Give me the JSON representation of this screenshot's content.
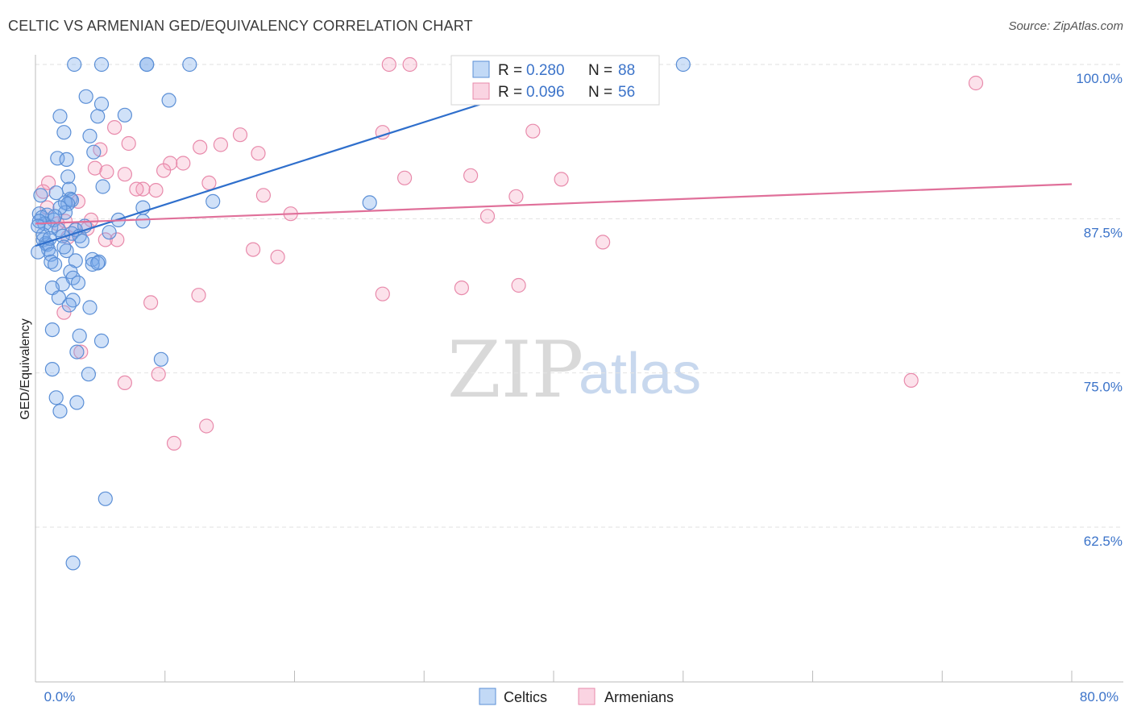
{
  "title": "CELTIC VS ARMENIAN GED/EQUIVALENCY CORRELATION CHART",
  "source": "Source: ZipAtlas.com",
  "watermark": {
    "zip": "ZIP",
    "atlas": "atlas"
  },
  "colors": {
    "celtic_fill": "rgba(120,170,235,0.35)",
    "celtic_stroke": "#5b8fd6",
    "celtic_line": "#2f6fcc",
    "armenian_fill": "rgba(245,160,190,0.30)",
    "armenian_stroke": "#e88aab",
    "armenian_line": "#e0709a",
    "axis_text": "#3b73c9",
    "grid": "#e2e2e2"
  },
  "legend": {
    "row1": {
      "r_label": "R = ",
      "r_value": "0.280",
      "n_label": "N = ",
      "n_value": "88"
    },
    "row2": {
      "r_label": "R = ",
      "r_value": "0.096",
      "n_label": "N = ",
      "n_value": "56"
    }
  },
  "chart_data": {
    "type": "scatter",
    "title": "CELTIC VS ARMENIAN GED/EQUIVALENCY CORRELATION CHART",
    "xlabel": "",
    "ylabel": "GED/Equivalency",
    "xlim": [
      0,
      80
    ],
    "ylim": [
      51.2,
      101.3
    ],
    "x_tick_labels": [
      "0.0%",
      "80.0%"
    ],
    "y_ticks": [
      62.5,
      75.0,
      87.5,
      100.0
    ],
    "y_tick_labels": [
      "62.5%",
      "75.0%",
      "87.5%",
      "100.0%"
    ],
    "legend_position": "bottom",
    "series": [
      {
        "name": "Celtics",
        "r": 0.28,
        "n": 88,
        "trend": {
          "x": [
            0.0,
            44.0
          ],
          "y": [
            85.3,
            100.0
          ]
        },
        "points": [
          [
            3,
            100
          ],
          [
            5.1,
            100
          ],
          [
            8.6,
            100
          ],
          [
            8.6,
            100
          ],
          [
            11.9,
            100
          ],
          [
            50,
            100
          ],
          [
            3.9,
            97.4
          ],
          [
            5.1,
            96.8
          ],
          [
            10.3,
            97.1
          ],
          [
            1.9,
            95.8
          ],
          [
            4.8,
            95.8
          ],
          [
            6.9,
            95.9
          ],
          [
            2.2,
            94.5
          ],
          [
            4.2,
            94.2
          ],
          [
            4.5,
            92.9
          ],
          [
            1.7,
            92.4
          ],
          [
            2.4,
            92.3
          ],
          [
            2.5,
            90.9
          ],
          [
            5.2,
            90.1
          ],
          [
            2.6,
            89.9
          ],
          [
            1.6,
            89.6
          ],
          [
            0.4,
            89.4
          ],
          [
            2.7,
            89.1
          ],
          [
            2.8,
            89.0
          ],
          [
            13.7,
            88.9
          ],
          [
            2.3,
            88.8
          ],
          [
            2.5,
            88.7
          ],
          [
            25.8,
            88.8
          ],
          [
            8.3,
            88.4
          ],
          [
            2.3,
            88.0
          ],
          [
            0.3,
            87.9
          ],
          [
            0.9,
            87.8
          ],
          [
            0.5,
            87.6
          ],
          [
            1.4,
            87.4
          ],
          [
            6.4,
            87.4
          ],
          [
            8.3,
            87.3
          ],
          [
            0.7,
            87.1
          ],
          [
            1.2,
            86.8
          ],
          [
            1.8,
            86.6
          ],
          [
            3.1,
            86.6
          ],
          [
            2.8,
            86.3
          ],
          [
            3.4,
            86.1
          ],
          [
            2.1,
            86.1
          ],
          [
            5.7,
            86.4
          ],
          [
            0.6,
            85.8
          ],
          [
            0.8,
            85.5
          ],
          [
            0.9,
            85.4
          ],
          [
            3.6,
            85.7
          ],
          [
            1.0,
            85.0
          ],
          [
            2.4,
            84.9
          ],
          [
            0.2,
            84.8
          ],
          [
            1.2,
            84.6
          ],
          [
            3.1,
            84.1
          ],
          [
            4.4,
            84.2
          ],
          [
            4.9,
            84.0
          ],
          [
            1.2,
            84.0
          ],
          [
            1.5,
            83.8
          ],
          [
            4.4,
            83.8
          ],
          [
            2.7,
            83.2
          ],
          [
            2.9,
            82.7
          ],
          [
            3.3,
            82.3
          ],
          [
            2.1,
            82.2
          ],
          [
            1.3,
            81.9
          ],
          [
            1.8,
            81.1
          ],
          [
            2.9,
            80.9
          ],
          [
            4.2,
            80.3
          ],
          [
            2.6,
            80.5
          ],
          [
            1.3,
            78.5
          ],
          [
            3.4,
            78.0
          ],
          [
            5.1,
            77.6
          ],
          [
            3.2,
            76.7
          ],
          [
            9.7,
            76.1
          ],
          [
            1.3,
            75.3
          ],
          [
            4.1,
            74.9
          ],
          [
            1.6,
            73.0
          ],
          [
            3.2,
            72.6
          ],
          [
            1.9,
            71.9
          ],
          [
            5.4,
            64.8
          ],
          [
            2.9,
            59.6
          ],
          [
            0.3,
            87.3
          ],
          [
            0.6,
            86.2
          ],
          [
            1.1,
            85.9
          ],
          [
            1.9,
            88.4
          ],
          [
            4.8,
            83.9
          ],
          [
            0.2,
            86.9
          ],
          [
            1.5,
            87.7
          ],
          [
            3.8,
            86.9
          ],
          [
            2.2,
            85.2
          ]
        ]
      },
      {
        "name": "Armenians",
        "r": 0.096,
        "n": 56,
        "trend": {
          "x": [
            0.0,
            80.0
          ],
          "y": [
            87.1,
            90.3
          ]
        },
        "points": [
          [
            27.3,
            100
          ],
          [
            28.9,
            100
          ],
          [
            72.6,
            98.5
          ],
          [
            6.1,
            94.9
          ],
          [
            15.8,
            94.3
          ],
          [
            26.8,
            94.5
          ],
          [
            38.4,
            94.6
          ],
          [
            7.2,
            93.6
          ],
          [
            12.7,
            93.3
          ],
          [
            14.3,
            93.5
          ],
          [
            17.2,
            92.8
          ],
          [
            5.0,
            93.1
          ],
          [
            10.4,
            92.0
          ],
          [
            11.4,
            92.0
          ],
          [
            9.9,
            91.4
          ],
          [
            4.6,
            91.6
          ],
          [
            5.5,
            91.3
          ],
          [
            6.9,
            91.1
          ],
          [
            28.5,
            90.8
          ],
          [
            33.6,
            91.0
          ],
          [
            40.6,
            90.7
          ],
          [
            13.4,
            90.4
          ],
          [
            1.0,
            90.4
          ],
          [
            0.6,
            89.7
          ],
          [
            8.3,
            89.9
          ],
          [
            9.3,
            89.8
          ],
          [
            7.8,
            89.9
          ],
          [
            17.6,
            89.4
          ],
          [
            37.1,
            89.3
          ],
          [
            3.3,
            88.9
          ],
          [
            19.7,
            87.9
          ],
          [
            34.9,
            87.7
          ],
          [
            2.3,
            87.3
          ],
          [
            4.3,
            87.4
          ],
          [
            4.0,
            86.7
          ],
          [
            3.1,
            86.6
          ],
          [
            5.4,
            85.8
          ],
          [
            6.3,
            85.8
          ],
          [
            2.5,
            86.0
          ],
          [
            43.8,
            85.6
          ],
          [
            16.8,
            85.0
          ],
          [
            18.7,
            84.4
          ],
          [
            37.3,
            82.1
          ],
          [
            32.9,
            81.9
          ],
          [
            26.8,
            81.4
          ],
          [
            12.6,
            81.3
          ],
          [
            8.9,
            80.7
          ],
          [
            2.2,
            79.9
          ],
          [
            3.5,
            76.7
          ],
          [
            9.5,
            74.9
          ],
          [
            6.9,
            74.2
          ],
          [
            67.6,
            74.4
          ],
          [
            13.2,
            70.7
          ],
          [
            10.7,
            69.3
          ],
          [
            1.7,
            87.1
          ],
          [
            0.9,
            88.4
          ]
        ]
      }
    ]
  },
  "bottom_legend": [
    {
      "label": "Celtics"
    },
    {
      "label": "Armenians"
    }
  ]
}
